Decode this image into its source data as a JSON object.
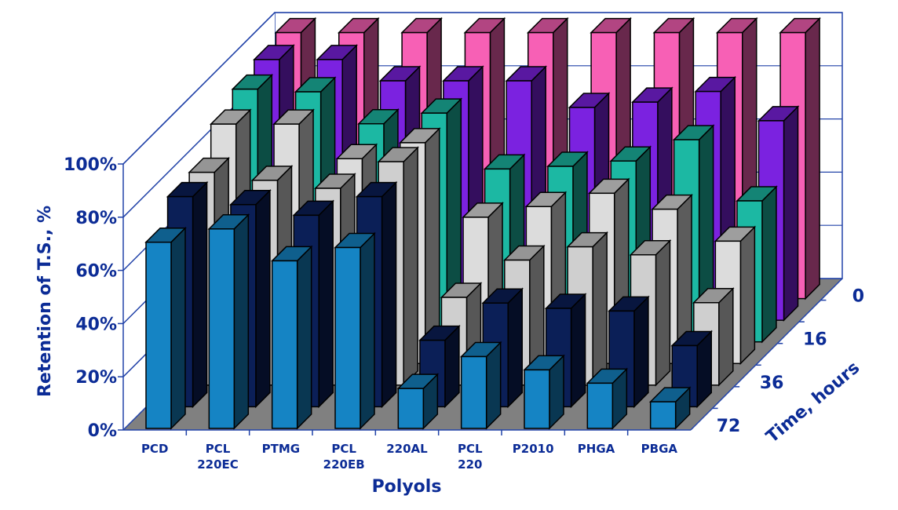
{
  "chart_data": {
    "type": "bar",
    "subtype": "3d-column",
    "xlabel": "Polyols",
    "ylabel": "Retention of T.S., %",
    "zlabel": "Time, hours",
    "categories": [
      "PCD",
      "PCL\n220EC",
      "PTMG",
      "PCL\n220EB",
      "220AL",
      "PCL\n220",
      "P2010",
      "PHGA",
      "PBGA"
    ],
    "y_ticks": [
      "0%",
      "20%",
      "40%",
      "60%",
      "80%",
      "100%"
    ],
    "ylim": [
      0,
      100
    ],
    "grid": true,
    "depth_labels": [
      "72",
      "",
      "36",
      "",
      "16",
      "",
      "0"
    ],
    "series": [
      {
        "name": "72",
        "color": "#1584c4",
        "values": [
          70,
          75,
          63,
          68,
          15,
          27,
          22,
          17,
          10
        ]
      },
      {
        "color": "#0b1f57",
        "values": [
          79,
          76,
          72,
          79,
          25,
          39,
          37,
          36,
          23
        ]
      },
      {
        "name": "36",
        "color": "#cfcfcf",
        "values": [
          80,
          77,
          74,
          84,
          33,
          47,
          52,
          49,
          31
        ]
      },
      {
        "color": "#dcdcdc",
        "values": [
          90,
          90,
          77,
          83,
          55,
          59,
          64,
          58,
          46
        ]
      },
      {
        "name": "16",
        "color": "#1cb8a3",
        "values": [
          95,
          94,
          82,
          86,
          65,
          66,
          68,
          76,
          53
        ]
      },
      {
        "color": "#7b22e0",
        "values": [
          98,
          98,
          90,
          90,
          90,
          80,
          82,
          86,
          75
        ]
      },
      {
        "name": "0",
        "color": "#f760b5",
        "values": [
          100,
          100,
          100,
          100,
          100,
          100,
          100,
          100,
          100
        ]
      }
    ]
  }
}
